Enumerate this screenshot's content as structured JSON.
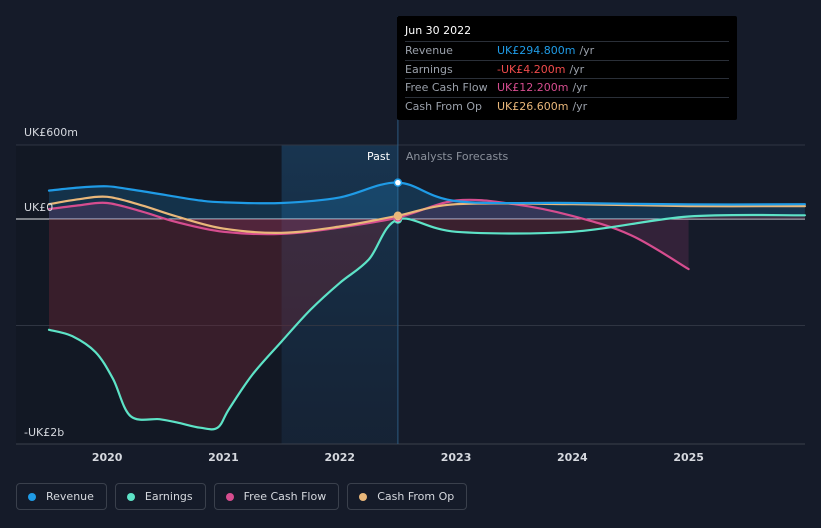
{
  "chart_data": {
    "type": "area",
    "ylim": [
      -2000,
      600
    ],
    "xlim": [
      2019.5,
      2026.0
    ],
    "y_tick_labels": [
      {
        "value": 600,
        "label": "UK£600m"
      },
      {
        "value": 0,
        "label": "UK£0"
      },
      {
        "value": -2000,
        "label": "-UK£2b"
      }
    ],
    "x_ticks": [
      2020,
      2021,
      2022,
      2023,
      2024,
      2025
    ],
    "x_tick_labels": [
      "2020",
      "2021",
      "2022",
      "2023",
      "2024",
      "2025"
    ],
    "past_label": "Past",
    "forecast_label": "Analysts Forecasts",
    "divider_x": 2022.5,
    "highlight_start_x": 2021.5,
    "series": [
      {
        "name": "Revenue",
        "color": "#1f9be6",
        "x": [
          2019.5,
          2019.75,
          2020.0,
          2020.2,
          2020.5,
          2020.8,
          2021.0,
          2021.5,
          2022.0,
          2022.5,
          2023.0,
          2024.0,
          2025.0,
          2026.0
        ],
        "y": [
          230,
          255,
          265,
          240,
          195,
          150,
          135,
          130,
          175,
          294.8,
          145,
          130,
          118,
          120
        ]
      },
      {
        "name": "Earnings",
        "color": "#5de3c7",
        "x": [
          2019.5,
          2019.7,
          2019.9,
          2020.05,
          2020.2,
          2020.45,
          2020.6,
          2020.8,
          2020.95,
          2021.05,
          2021.25,
          2021.5,
          2021.75,
          2022.0,
          2022.25,
          2022.5,
          2023.0,
          2024.0,
          2025.0,
          2026.0
        ],
        "y": [
          -1040,
          -1100,
          -1250,
          -1500,
          -1850,
          -1880,
          -1910,
          -1960,
          -1960,
          -1780,
          -1460,
          -1150,
          -850,
          -600,
          -380,
          -4.2,
          -120,
          -120,
          20,
          30
        ]
      },
      {
        "name": "Free Cash Flow",
        "color": "#d64d8f",
        "x": [
          2019.5,
          2019.75,
          2020.0,
          2020.3,
          2020.6,
          2021.0,
          2021.5,
          2022.0,
          2022.5,
          2023.0,
          2023.5,
          2024.0,
          2024.5,
          2025.0
        ],
        "y": [
          80,
          110,
          130,
          60,
          -30,
          -120,
          -140,
          -80,
          12.2,
          150,
          120,
          25,
          -150,
          -470
        ]
      },
      {
        "name": "Cash From Op",
        "color": "#e9b77a",
        "x": [
          2019.5,
          2019.75,
          2020.0,
          2020.3,
          2020.6,
          2021.0,
          2021.5,
          2022.0,
          2022.5,
          2023.0,
          2024.0,
          2025.0,
          2026.0
        ],
        "y": [
          120,
          160,
          180,
          110,
          20,
          -90,
          -130,
          -70,
          26.6,
          120,
          120,
          105,
          105
        ]
      }
    ]
  },
  "tooltip": {
    "date": "Jun 30 2022",
    "rows": [
      {
        "label": "Revenue",
        "value": "UK£294.800m",
        "unit": "/yr",
        "color": "#1f9be6"
      },
      {
        "label": "Earnings",
        "value": "-UK£4.200m",
        "unit": "/yr",
        "color": "#ef4b4b"
      },
      {
        "label": "Free Cash Flow",
        "value": "UK£12.200m",
        "unit": "/yr",
        "color": "#d64d8f"
      },
      {
        "label": "Cash From Op",
        "value": "UK£26.600m",
        "unit": "/yr",
        "color": "#e9b77a"
      }
    ]
  },
  "legend": [
    {
      "label": "Revenue",
      "color": "#1f9be6"
    },
    {
      "label": "Earnings",
      "color": "#5de3c7"
    },
    {
      "label": "Free Cash Flow",
      "color": "#d64d8f"
    },
    {
      "label": "Cash From Op",
      "color": "#e9b77a"
    }
  ]
}
